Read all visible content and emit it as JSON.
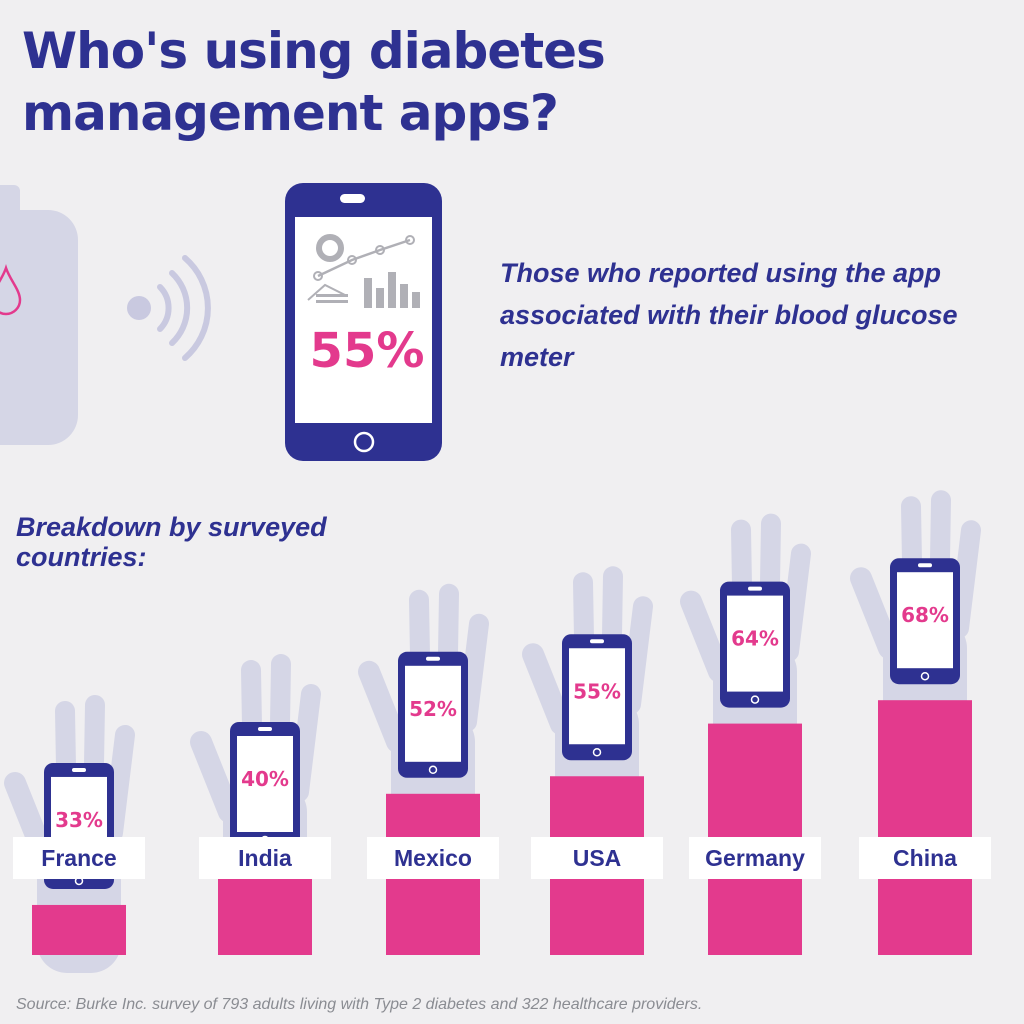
{
  "title": "Who's using diabetes management apps?",
  "hero": {
    "value": "55%",
    "text": "Those who reported using the app associated with their blood glucose meter"
  },
  "breakdown_title": "Breakdown by surveyed countries:",
  "source": "Source: Burke Inc. survey of 793 adults living with Type 2 diabetes and 322 healthcare providers.",
  "colors": {
    "navy": "#2e3191",
    "pink": "#e33a8d",
    "hand": "#d5d6e6",
    "background": "#f0eff1"
  },
  "chart_data": {
    "type": "bar",
    "categories": [
      "France",
      "India",
      "Mexico",
      "USA",
      "Germany",
      "China"
    ],
    "values": [
      33,
      40,
      52,
      55,
      64,
      68
    ],
    "value_labels": [
      "33%",
      "40%",
      "52%",
      "55%",
      "64%",
      "68%"
    ],
    "unit": "%"
  }
}
